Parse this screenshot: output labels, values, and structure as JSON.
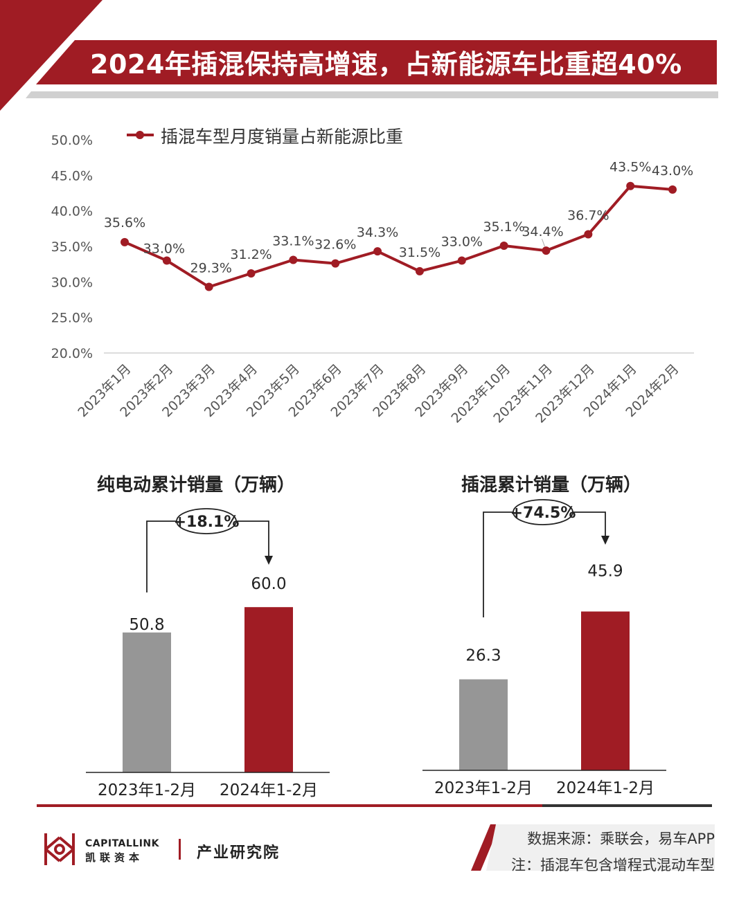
{
  "header": {
    "title": "2024年插混保持高增速，占新能源车比重超40%"
  },
  "colors": {
    "brand_red": "#a01c24",
    "grey_bar": "#969696",
    "line_red": "#a01c24"
  },
  "chart_data": [
    {
      "type": "line",
      "series": [
        {
          "name": "插混车型月度销量占新能源比重",
          "values": [
            35.6,
            33.0,
            29.3,
            31.2,
            33.1,
            32.6,
            34.3,
            31.5,
            33.0,
            35.1,
            34.4,
            36.7,
            43.5,
            43.0
          ],
          "labels": [
            "35.6%",
            "33.0%",
            "29.3%",
            "31.2%",
            "33.1%",
            "32.6%",
            "34.3%",
            "31.5%",
            "33.0%",
            "35.1%",
            "34.4%",
            "36.7%",
            "43.5%",
            "43.0%"
          ]
        }
      ],
      "categories": [
        "2023年1月",
        "2023年2月",
        "2023年3月",
        "2023年4月",
        "2023年5月",
        "2023年6月",
        "2023年7月",
        "2023年8月",
        "2023年9月",
        "2023年10月",
        "2023年11月",
        "2023年12月",
        "2024年1月",
        "2024年2月"
      ],
      "y_ticks": [
        "20.0%",
        "25.0%",
        "30.0%",
        "35.0%",
        "40.0%",
        "45.0%",
        "50.0%"
      ],
      "ylim": [
        20,
        50
      ],
      "legend": "top-left",
      "grid": false
    },
    {
      "type": "bar",
      "title": "纯电动累计销量（万辆）",
      "categories": [
        "2023年1-2月",
        "2024年1-2月"
      ],
      "values": [
        50.8,
        60.0
      ],
      "labels": [
        "50.8",
        "60.0"
      ],
      "growth": "+18.1%",
      "ylim": [
        0,
        70
      ]
    },
    {
      "type": "bar",
      "title": "插混累计销量（万辆）",
      "categories": [
        "2023年1-2月",
        "2024年1-2月"
      ],
      "values": [
        26.3,
        45.9
      ],
      "labels": [
        "26.3",
        "45.9"
      ],
      "growth": "+74.5%",
      "ylim": [
        0,
        60
      ]
    }
  ],
  "footer": {
    "brand_en": "CAPITALLINK",
    "brand_cn": "凯联资本",
    "institute": "产业研究院",
    "source": "数据来源：乘联会，易车APP",
    "note": "注：插混车包含增程式混动车型"
  }
}
